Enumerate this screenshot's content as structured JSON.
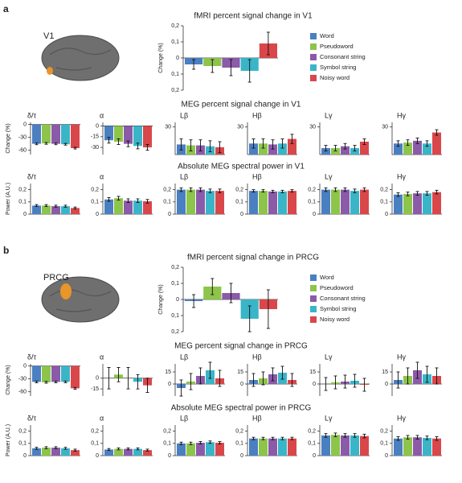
{
  "bar_colors": [
    "#4a7fc1",
    "#8dc44a",
    "#8b5aa8",
    "#3ab5c8",
    "#d9474a"
  ],
  "panels": [
    {
      "letter": "a",
      "region": "V1",
      "headings": [
        "fMRI percent signal change in V1",
        "MEG percent signal change in V1",
        "Absolute MEG spectral power in V1"
      ]
    },
    {
      "letter": "b",
      "region": "PRCG",
      "headings": [
        "fMRI percent signal change in PRCG",
        "MEG percent signal change in PRCG",
        "Absolute MEG spectral power in PRCG"
      ]
    }
  ],
  "chart_data": [
    {
      "type": "bar",
      "ylabel": "Change (%)",
      "legend": [
        "Word",
        "Pseudoword",
        "Consonant string",
        "Symbol string",
        "Noisy word"
      ],
      "ylim": [
        -0.2,
        0.2
      ],
      "yticks": [
        {
          "value": 0.2,
          "label": "0,2"
        },
        {
          "value": 0.1,
          "label": "0,1"
        },
        0,
        {
          "value": -0.1,
          "label": "0,1"
        },
        {
          "value": -0.2,
          "label": "0,2"
        }
      ],
      "values": [
        -0.04,
        -0.05,
        -0.06,
        -0.08,
        0.09
      ],
      "errors": [
        0.03,
        0.04,
        0.05,
        0.07,
        0.07
      ]
    },
    {
      "type": "bar",
      "title": "δ/τ",
      "ylabel": "Change (%)",
      "ylim": [
        -70,
        5
      ],
      "yticks": [
        0,
        -30,
        -60
      ],
      "values": [
        -45,
        -44,
        -45,
        -46,
        -55
      ],
      "errors": [
        2,
        2,
        2,
        2,
        2
      ]
    },
    {
      "type": "bar",
      "title": "α",
      "ylim": [
        -40,
        5
      ],
      "yticks": [
        0,
        -15,
        -30
      ],
      "values": [
        -20,
        -22,
        -25,
        -28,
        -30
      ],
      "errors": [
        4,
        4,
        4,
        4,
        4
      ]
    },
    {
      "type": "bar",
      "title": "Lβ",
      "ylim": [
        0,
        35
      ],
      "yticks": [
        30
      ],
      "values": [
        11,
        10,
        10,
        9,
        8
      ],
      "errors": [
        6,
        6,
        6,
        6,
        6
      ]
    },
    {
      "type": "bar",
      "title": "Hβ",
      "ylim": [
        0,
        35
      ],
      "yticks": [
        30
      ],
      "values": [
        12,
        12,
        11,
        12,
        17
      ],
      "errors": [
        5,
        5,
        5,
        5,
        5
      ]
    },
    {
      "type": "bar",
      "title": "Lγ",
      "ylim": [
        0,
        35
      ],
      "yticks": [
        30
      ],
      "values": [
        7,
        7,
        9,
        7,
        14
      ],
      "errors": [
        3,
        3,
        3,
        3,
        3
      ]
    },
    {
      "type": "bar",
      "title": "Hγ",
      "ylim": [
        0,
        35
      ],
      "yticks": [
        30
      ],
      "values": [
        12,
        13,
        15,
        12,
        24
      ],
      "errors": [
        3,
        3,
        3,
        3,
        3
      ]
    },
    {
      "type": "bar",
      "title": "δ/τ",
      "ylabel": "Power (A.U.)",
      "ylim": [
        0,
        0.25
      ],
      "yticks": [
        {
          "value": 0.2,
          "label": "0,2"
        },
        {
          "value": 0.1,
          "label": "0,1"
        },
        0
      ],
      "values": [
        0.07,
        0.07,
        0.065,
        0.065,
        0.05
      ],
      "errors": [
        0.008,
        0.008,
        0.008,
        0.008,
        0.008
      ]
    },
    {
      "type": "bar",
      "title": "α",
      "ylim": [
        0,
        0.25
      ],
      "yticks": [
        {
          "value": 0.2,
          "label": "0,2"
        },
        {
          "value": 0.1,
          "label": "0,1"
        },
        0
      ],
      "values": [
        0.12,
        0.13,
        0.11,
        0.11,
        0.105
      ],
      "errors": [
        0.015,
        0.015,
        0.015,
        0.015,
        0.015
      ]
    },
    {
      "type": "bar",
      "title": "Lβ",
      "ylim": [
        0,
        0.25
      ],
      "yticks": [
        {
          "value": 0.2,
          "label": "0,2"
        },
        {
          "value": 0.1,
          "label": "0,1"
        },
        0
      ],
      "values": [
        0.2,
        0.2,
        0.2,
        0.19,
        0.19
      ],
      "errors": [
        0.015,
        0.015,
        0.015,
        0.015,
        0.015
      ]
    },
    {
      "type": "bar",
      "title": "Hβ",
      "ylim": [
        0,
        0.25
      ],
      "yticks": [
        {
          "value": 0.2,
          "label": "0,2"
        },
        {
          "value": 0.1,
          "label": "0,1"
        },
        0
      ],
      "values": [
        0.19,
        0.19,
        0.185,
        0.185,
        0.19
      ],
      "errors": [
        0.01,
        0.01,
        0.01,
        0.01,
        0.01
      ]
    },
    {
      "type": "bar",
      "title": "Lγ",
      "ylim": [
        0,
        0.25
      ],
      "yticks": [
        {
          "value": 0.2,
          "label": "0,2"
        },
        {
          "value": 0.1,
          "label": "0,1"
        },
        0
      ],
      "values": [
        0.2,
        0.2,
        0.2,
        0.19,
        0.2
      ],
      "errors": [
        0.015,
        0.015,
        0.015,
        0.015,
        0.015
      ]
    },
    {
      "type": "bar",
      "title": "Hγ",
      "ylim": [
        0,
        0.25
      ],
      "yticks": [
        {
          "value": 0.2,
          "label": "0,2"
        },
        {
          "value": 0.1,
          "label": "0,1"
        },
        0
      ],
      "values": [
        0.16,
        0.165,
        0.17,
        0.17,
        0.18
      ],
      "errors": [
        0.015,
        0.015,
        0.015,
        0.015,
        0.015
      ]
    },
    {
      "type": "bar",
      "ylabel": "Change (%)",
      "legend": [
        "Word",
        "Pseudoword",
        "Consonant string",
        "Symbol string",
        "Noisy word"
      ],
      "ylim": [
        -0.2,
        0.2
      ],
      "yticks": [
        {
          "value": 0.2,
          "label": "0,2"
        },
        {
          "value": 0.1,
          "label": "0,1"
        },
        0,
        {
          "value": -0.1,
          "label": "0,1"
        },
        {
          "value": -0.2,
          "label": "0,2"
        }
      ],
      "values": [
        -0.01,
        0.08,
        0.04,
        -0.12,
        -0.06
      ],
      "errors": [
        0.04,
        0.05,
        0.06,
        0.08,
        0.12
      ]
    },
    {
      "type": "bar",
      "title": "δ/τ",
      "ylabel": "Change (%)",
      "ylim": [
        -70,
        5
      ],
      "yticks": [
        0,
        -30,
        -60
      ],
      "values": [
        -37,
        -38,
        -37,
        -37,
        -52
      ],
      "errors": [
        2,
        2,
        2,
        2,
        2
      ]
    },
    {
      "type": "bar",
      "title": "α",
      "ylim": [
        -25,
        20
      ],
      "yticks": [
        0,
        -15
      ],
      "values": [
        0,
        5,
        0,
        -5,
        -10
      ],
      "errors": [
        15,
        10,
        15,
        10,
        10
      ]
    },
    {
      "type": "bar",
      "title": "Lβ",
      "ylim": [
        -15,
        25
      ],
      "yticks": [
        15,
        0
      ],
      "values": [
        -5,
        3,
        10,
        17,
        7
      ],
      "errors": [
        10,
        10,
        10,
        10,
        10
      ]
    },
    {
      "type": "bar",
      "title": "Hβ",
      "ylim": [
        -15,
        25
      ],
      "yticks": [
        15,
        0
      ],
      "values": [
        5,
        7,
        12,
        14,
        5
      ],
      "errors": [
        8,
        8,
        8,
        8,
        8
      ]
    },
    {
      "type": "bar",
      "title": "Lγ",
      "ylim": [
        -15,
        25
      ],
      "yticks": [
        15,
        0
      ],
      "values": [
        0,
        2,
        3,
        4,
        -1
      ],
      "errors": [
        8,
        8,
        8,
        8,
        8
      ]
    },
    {
      "type": "bar",
      "title": "Hγ",
      "ylim": [
        -15,
        25
      ],
      "yticks": [
        15,
        0
      ],
      "values": [
        5,
        10,
        17,
        12,
        10
      ],
      "errors": [
        10,
        10,
        10,
        10,
        10
      ]
    },
    {
      "type": "bar",
      "title": "δ/τ",
      "ylabel": "Power (A.U.)",
      "ylim": [
        0,
        0.25
      ],
      "yticks": [
        {
          "value": 0.2,
          "label": "0,2"
        },
        {
          "value": 0.1,
          "label": "0,1"
        },
        0
      ],
      "values": [
        0.06,
        0.065,
        0.065,
        0.06,
        0.045
      ],
      "errors": [
        0.008,
        0.008,
        0.008,
        0.008,
        0.008
      ]
    },
    {
      "type": "bar",
      "title": "α",
      "ylim": [
        0,
        0.25
      ],
      "yticks": [
        {
          "value": 0.2,
          "label": "0,2"
        },
        {
          "value": 0.1,
          "label": "0,1"
        },
        0
      ],
      "values": [
        0.05,
        0.055,
        0.055,
        0.055,
        0.045
      ],
      "errors": [
        0.008,
        0.008,
        0.008,
        0.008,
        0.008
      ]
    },
    {
      "type": "bar",
      "title": "Lβ",
      "ylim": [
        0,
        0.25
      ],
      "yticks": [
        {
          "value": 0.2,
          "label": "0,2"
        },
        {
          "value": 0.1,
          "label": "0,1"
        },
        0
      ],
      "values": [
        0.1,
        0.1,
        0.105,
        0.11,
        0.105
      ],
      "errors": [
        0.01,
        0.01,
        0.01,
        0.01,
        0.01
      ]
    },
    {
      "type": "bar",
      "title": "Hβ",
      "ylim": [
        0,
        0.25
      ],
      "yticks": [
        {
          "value": 0.2,
          "label": "0,2"
        },
        {
          "value": 0.1,
          "label": "0,1"
        },
        0
      ],
      "values": [
        0.14,
        0.14,
        0.14,
        0.14,
        0.14
      ],
      "errors": [
        0.01,
        0.01,
        0.01,
        0.01,
        0.01
      ]
    },
    {
      "type": "bar",
      "title": "Lγ",
      "ylim": [
        0,
        0.25
      ],
      "yticks": [
        {
          "value": 0.2,
          "label": "0,2"
        },
        {
          "value": 0.1,
          "label": "0,1"
        },
        0
      ],
      "values": [
        0.165,
        0.17,
        0.165,
        0.165,
        0.16
      ],
      "errors": [
        0.015,
        0.015,
        0.015,
        0.015,
        0.015
      ]
    },
    {
      "type": "bar",
      "title": "Hγ",
      "ylim": [
        0,
        0.25
      ],
      "yticks": [
        {
          "value": 0.2,
          "label": "0,2"
        },
        {
          "value": 0.1,
          "label": "0,1"
        },
        0
      ],
      "values": [
        0.14,
        0.15,
        0.15,
        0.145,
        0.14
      ],
      "errors": [
        0.015,
        0.015,
        0.015,
        0.015,
        0.015
      ]
    }
  ]
}
